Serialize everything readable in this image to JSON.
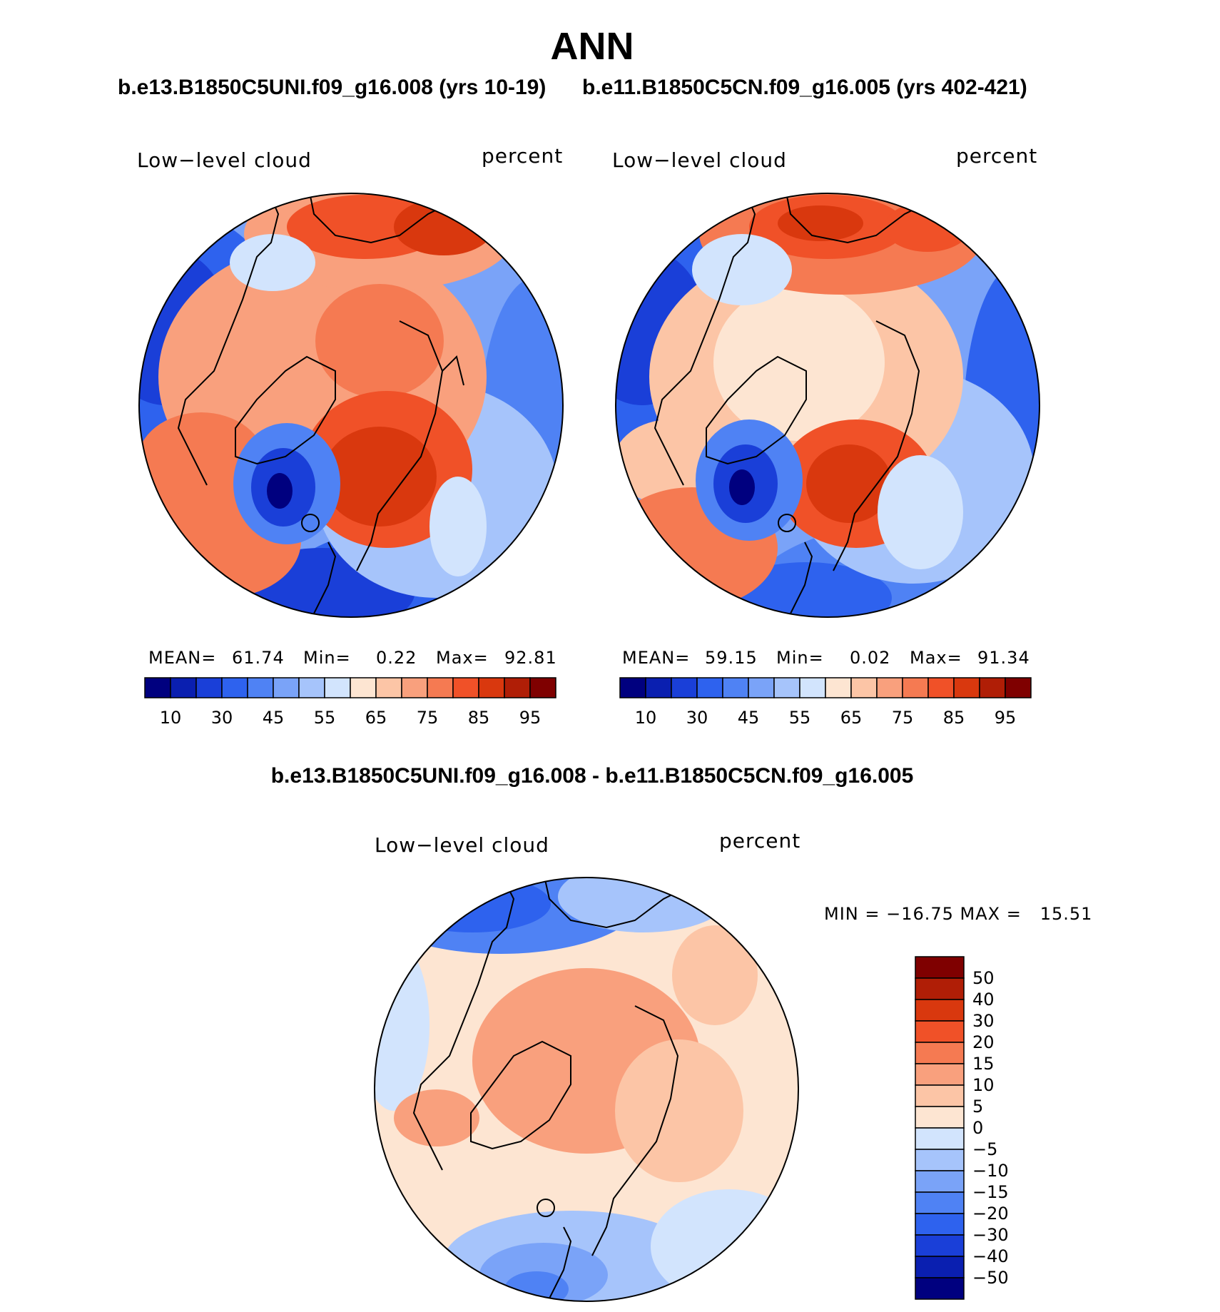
{
  "figure": {
    "title": "ANN",
    "case1_title": "b.e13.B1850C5UNI.f09_g16.008 (yrs 10-19)",
    "case2_title": "b.e11.B1850C5CN.f09_g16.005 (yrs 402-421)",
    "diff_title": "b.e13.B1850C5UNI.f09_g16.008 - b.e11.B1850C5CN.f09_g16.005"
  },
  "panels": [
    {
      "id": "case1",
      "variable_label": "Low−level cloud",
      "units_label": "percent",
      "stats": {
        "mean_label": "MEAN=",
        "mean": "61.74",
        "min_label": "Min=",
        "min": "0.22",
        "max_label": "Max=",
        "max": "92.81"
      }
    },
    {
      "id": "case2",
      "variable_label": "Low−level cloud",
      "units_label": "percent",
      "stats": {
        "mean_label": "MEAN=",
        "mean": "59.15",
        "min_label": "Min=",
        "min": "0.02",
        "max_label": "Max=",
        "max": "91.34"
      }
    },
    {
      "id": "difference",
      "variable_label": "Low−level cloud",
      "units_label": "percent",
      "stats_text": "MIN = −16.75 MAX =   15.51"
    }
  ],
  "chart_data": [
    {
      "type": "heatmap",
      "projection": "polar stereographic (north pole)",
      "title": "b.e13.B1850C5UNI.f09_g16.008 (yrs 10-19)",
      "variable": "Low-level cloud",
      "units": "percent",
      "mean": 61.74,
      "min": 0.22,
      "max": 92.81,
      "colorbar": {
        "orientation": "horizontal",
        "levels": [
          5,
          10,
          20,
          30,
          40,
          45,
          50,
          55,
          60,
          65,
          70,
          75,
          80,
          85,
          90,
          95
        ],
        "tick_labels": [
          "10",
          "30",
          "45",
          "55",
          "65",
          "75",
          "85",
          "95"
        ],
        "colors": [
          "#00007f",
          "#0a1fb0",
          "#1a3fd8",
          "#2e62ee",
          "#4f82f4",
          "#7aa3f8",
          "#a6c4fb",
          "#d2e4fd",
          "#fde5d2",
          "#fcc5a6",
          "#f9a07d",
          "#f57a52",
          "#f05128",
          "#d9380e",
          "#b01e06",
          "#7f0000"
        ]
      }
    },
    {
      "type": "heatmap",
      "projection": "polar stereographic (north pole)",
      "title": "b.e11.B1850C5CN.f09_g16.005 (yrs 402-421)",
      "variable": "Low-level cloud",
      "units": "percent",
      "mean": 59.15,
      "min": 0.02,
      "max": 91.34,
      "colorbar": {
        "orientation": "horizontal",
        "levels": [
          5,
          10,
          20,
          30,
          40,
          45,
          50,
          55,
          60,
          65,
          70,
          75,
          80,
          85,
          90,
          95
        ],
        "tick_labels": [
          "10",
          "30",
          "45",
          "55",
          "65",
          "75",
          "85",
          "95"
        ],
        "colors": [
          "#00007f",
          "#0a1fb0",
          "#1a3fd8",
          "#2e62ee",
          "#4f82f4",
          "#7aa3f8",
          "#a6c4fb",
          "#d2e4fd",
          "#fde5d2",
          "#fcc5a6",
          "#f9a07d",
          "#f57a52",
          "#f05128",
          "#d9380e",
          "#b01e06",
          "#7f0000"
        ]
      }
    },
    {
      "type": "heatmap",
      "projection": "polar stereographic (north pole)",
      "title": "b.e13.B1850C5UNI.f09_g16.008 - b.e11.B1850C5CN.f09_g16.005",
      "variable": "Low-level cloud",
      "units": "percent",
      "min": -16.75,
      "max": 15.51,
      "colorbar": {
        "orientation": "vertical",
        "tick_labels": [
          "50",
          "40",
          "30",
          "20",
          "15",
          "10",
          "5",
          "0",
          "−5",
          "−10",
          "−15",
          "−20",
          "−30",
          "−40",
          "−50"
        ],
        "colors": [
          "#7f0000",
          "#b01e06",
          "#d9380e",
          "#f05128",
          "#f57a52",
          "#f9a07d",
          "#fcc5a6",
          "#fde5d2",
          "#d2e4fd",
          "#a6c4fb",
          "#7aa3f8",
          "#4f82f4",
          "#2e62ee",
          "#1a3fd8",
          "#0a1fb0",
          "#00007f"
        ]
      }
    }
  ]
}
